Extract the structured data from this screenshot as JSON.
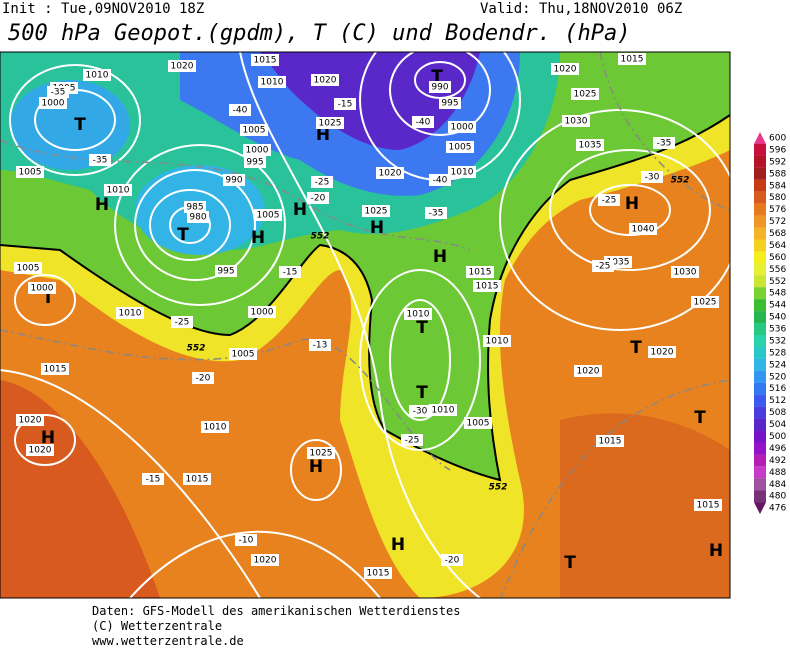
{
  "header": {
    "init": "Init : Tue,09NOV2010 18Z",
    "valid": "Valid: Thu,18NOV2010 06Z",
    "title": "500 hPa Geopot.(gpdm), T (C) und Bodendr. (hPa)"
  },
  "legend": {
    "levels": [
      {
        "value": 600,
        "color": "#e8388c"
      },
      {
        "value": 596,
        "color": "#c8103c"
      },
      {
        "value": 592,
        "color": "#b41428"
      },
      {
        "value": 588,
        "color": "#a01e1e"
      },
      {
        "value": 584,
        "color": "#c83c14"
      },
      {
        "value": 580,
        "color": "#d85a1e"
      },
      {
        "value": 576,
        "color": "#e6781e"
      },
      {
        "value": 572,
        "color": "#f09628"
      },
      {
        "value": 568,
        "color": "#f5b428"
      },
      {
        "value": 564,
        "color": "#f5d21e"
      },
      {
        "value": 560,
        "color": "#f5ee1e"
      },
      {
        "value": 556,
        "color": "#e6f032"
      },
      {
        "value": 552,
        "color": "#c8e632"
      },
      {
        "value": 548,
        "color": "#78d232"
      },
      {
        "value": 544,
        "color": "#3cbe32"
      },
      {
        "value": 540,
        "color": "#28b450"
      },
      {
        "value": 536,
        "color": "#28c882"
      },
      {
        "value": 532,
        "color": "#28d2aa"
      },
      {
        "value": 528,
        "color": "#28c8c8"
      },
      {
        "value": 524,
        "color": "#32b4e6"
      },
      {
        "value": 520,
        "color": "#3296f0"
      },
      {
        "value": 516,
        "color": "#3278f0"
      },
      {
        "value": 512,
        "color": "#3c5af0"
      },
      {
        "value": 508,
        "color": "#4b3cdc"
      },
      {
        "value": 504,
        "color": "#5a28c8"
      },
      {
        "value": 500,
        "color": "#7814c8"
      },
      {
        "value": 496,
        "color": "#9614c8"
      },
      {
        "value": 492,
        "color": "#b41eb4"
      },
      {
        "value": 488,
        "color": "#c83cc8"
      },
      {
        "value": 484,
        "color": "#a050a0"
      },
      {
        "value": 480,
        "color": "#783278"
      },
      {
        "value": 476,
        "color": "#641464"
      }
    ]
  },
  "map": {
    "centers": [
      "T",
      "T",
      "T",
      "T",
      "T",
      "T",
      "T",
      "T",
      "T",
      "H",
      "H",
      "H",
      "H",
      "H",
      "H",
      "H",
      "H",
      "H",
      "H",
      "H"
    ],
    "isobars": [
      "1010",
      "1020",
      "1015",
      "1005",
      "1000",
      "1005",
      "1010",
      "1010",
      "1020",
      "1025",
      "1005",
      "1000",
      "995",
      "990",
      "985",
      "980",
      "1005",
      "995",
      "1000",
      "1005",
      "1020",
      "1025",
      "990",
      "995",
      "1000",
      "1005",
      "1010",
      "1020",
      "1015",
      "1025",
      "1030",
      "1035",
      "1040",
      "1035",
      "1030",
      "1025",
      "1020",
      "1015",
      "1015",
      "1010",
      "1010",
      "1020",
      "1015",
      "1005",
      "1010",
      "1010",
      "1015",
      "1025",
      "1020",
      "1015",
      "1020",
      "1020",
      "1005",
      "1000",
      "1010",
      "1015",
      "1015"
    ],
    "temperatures": [
      "-35",
      "-35",
      "-40",
      "-15",
      "-40",
      "-40",
      "-35",
      "-25",
      "-20",
      "-15",
      "-25",
      "-20",
      "-15",
      "-10",
      "-20",
      "-25",
      "-30",
      "-35",
      "-30",
      "-25",
      "-25",
      "-13"
    ],
    "geopotential": [
      "552",
      "552",
      "552",
      "552"
    ]
  },
  "footer": {
    "lines": [
      "Daten: GFS-Modell des amerikanischen Wetterdienstes",
      "(C) Wetterzentrale",
      "www.wetterzentrale.de"
    ]
  }
}
